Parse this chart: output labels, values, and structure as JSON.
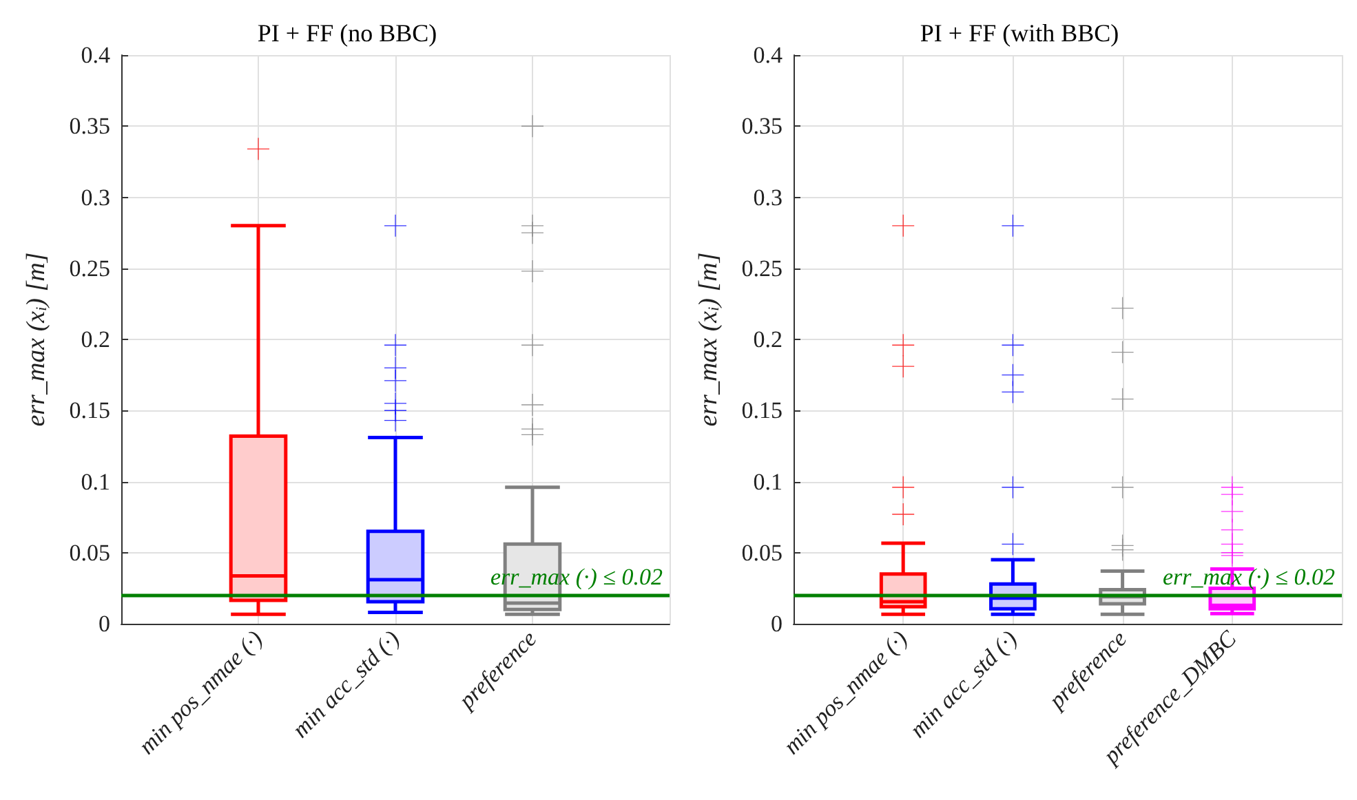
{
  "chart_data": [
    {
      "type": "box",
      "title": "PI + FF (no BBC)",
      "ylabel": "err_max (x$_{i}$) [m]",
      "categories": [
        "min pos_nmae (·)",
        "min acc_std (·)",
        "preference"
      ],
      "colors": [
        "#ff0000",
        "#0000ff",
        "#808080"
      ],
      "boxes": [
        {
          "low": 0.0066,
          "q1": 0.0165,
          "median": 0.0336,
          "q3": 0.132,
          "high": 0.28,
          "outliers": [
            0.334
          ]
        },
        {
          "low": 0.008,
          "q1": 0.0155,
          "median": 0.031,
          "q3": 0.065,
          "high": 0.131,
          "outliers": [
            0.28,
            0.196,
            0.18,
            0.171,
            0.155,
            0.15,
            0.143
          ]
        },
        {
          "low": 0.0066,
          "q1": 0.01,
          "median": 0.0145,
          "q3": 0.056,
          "high": 0.096,
          "outliers": [
            0.35,
            0.28,
            0.275,
            0.248,
            0.196,
            0.154,
            0.137,
            0.133
          ]
        }
      ],
      "ylim": [
        0,
        0.4
      ],
      "yticks": [
        0,
        0.05,
        0.1,
        0.15,
        0.2,
        0.25,
        0.3,
        0.35,
        0.4
      ],
      "grid": true,
      "marker": "cross",
      "ref_lines": [
        {
          "axis": "y",
          "value": 0.02,
          "label": "err_max (·) ≤ 0.02",
          "color": "#008000"
        }
      ]
    },
    {
      "type": "box",
      "title": "PI + FF (with BBC)",
      "ylabel": "err_max (x$_{i}$) [m]",
      "categories": [
        "min pos_nmae (·)",
        "min acc_std (·)",
        "preference",
        "preference_DMBC"
      ],
      "colors": [
        "#ff0000",
        "#0000ff",
        "#808080",
        "#ff00ff"
      ],
      "boxes": [
        {
          "low": 0.0066,
          "q1": 0.012,
          "median": 0.0155,
          "q3": 0.035,
          "high": 0.0567,
          "outliers": [
            0.28,
            0.196,
            0.181,
            0.096,
            0.077
          ]
        },
        {
          "low": 0.0066,
          "q1": 0.0105,
          "median": 0.018,
          "q3": 0.028,
          "high": 0.045,
          "outliers": [
            0.28,
            0.196,
            0.175,
            0.163,
            0.096,
            0.056
          ]
        },
        {
          "low": 0.0066,
          "q1": 0.014,
          "median": 0.019,
          "q3": 0.024,
          "high": 0.037,
          "outliers": [
            0.222,
            0.191,
            0.158,
            0.096,
            0.055,
            0.052
          ]
        },
        {
          "low": 0.0072,
          "q1": 0.0105,
          "median": 0.013,
          "q3": 0.025,
          "high": 0.0385,
          "outliers": [
            0.096,
            0.091,
            0.079,
            0.066,
            0.056,
            0.05,
            0.048
          ]
        }
      ],
      "ylim": [
        0,
        0.4
      ],
      "yticks": [
        0,
        0.05,
        0.1,
        0.15,
        0.2,
        0.25,
        0.3,
        0.35,
        0.4
      ],
      "grid": true,
      "marker": "cross",
      "ref_lines": [
        {
          "axis": "y",
          "value": 0.02,
          "label": "err_max (·) ≤ 0.02",
          "color": "#008000"
        }
      ]
    }
  ]
}
